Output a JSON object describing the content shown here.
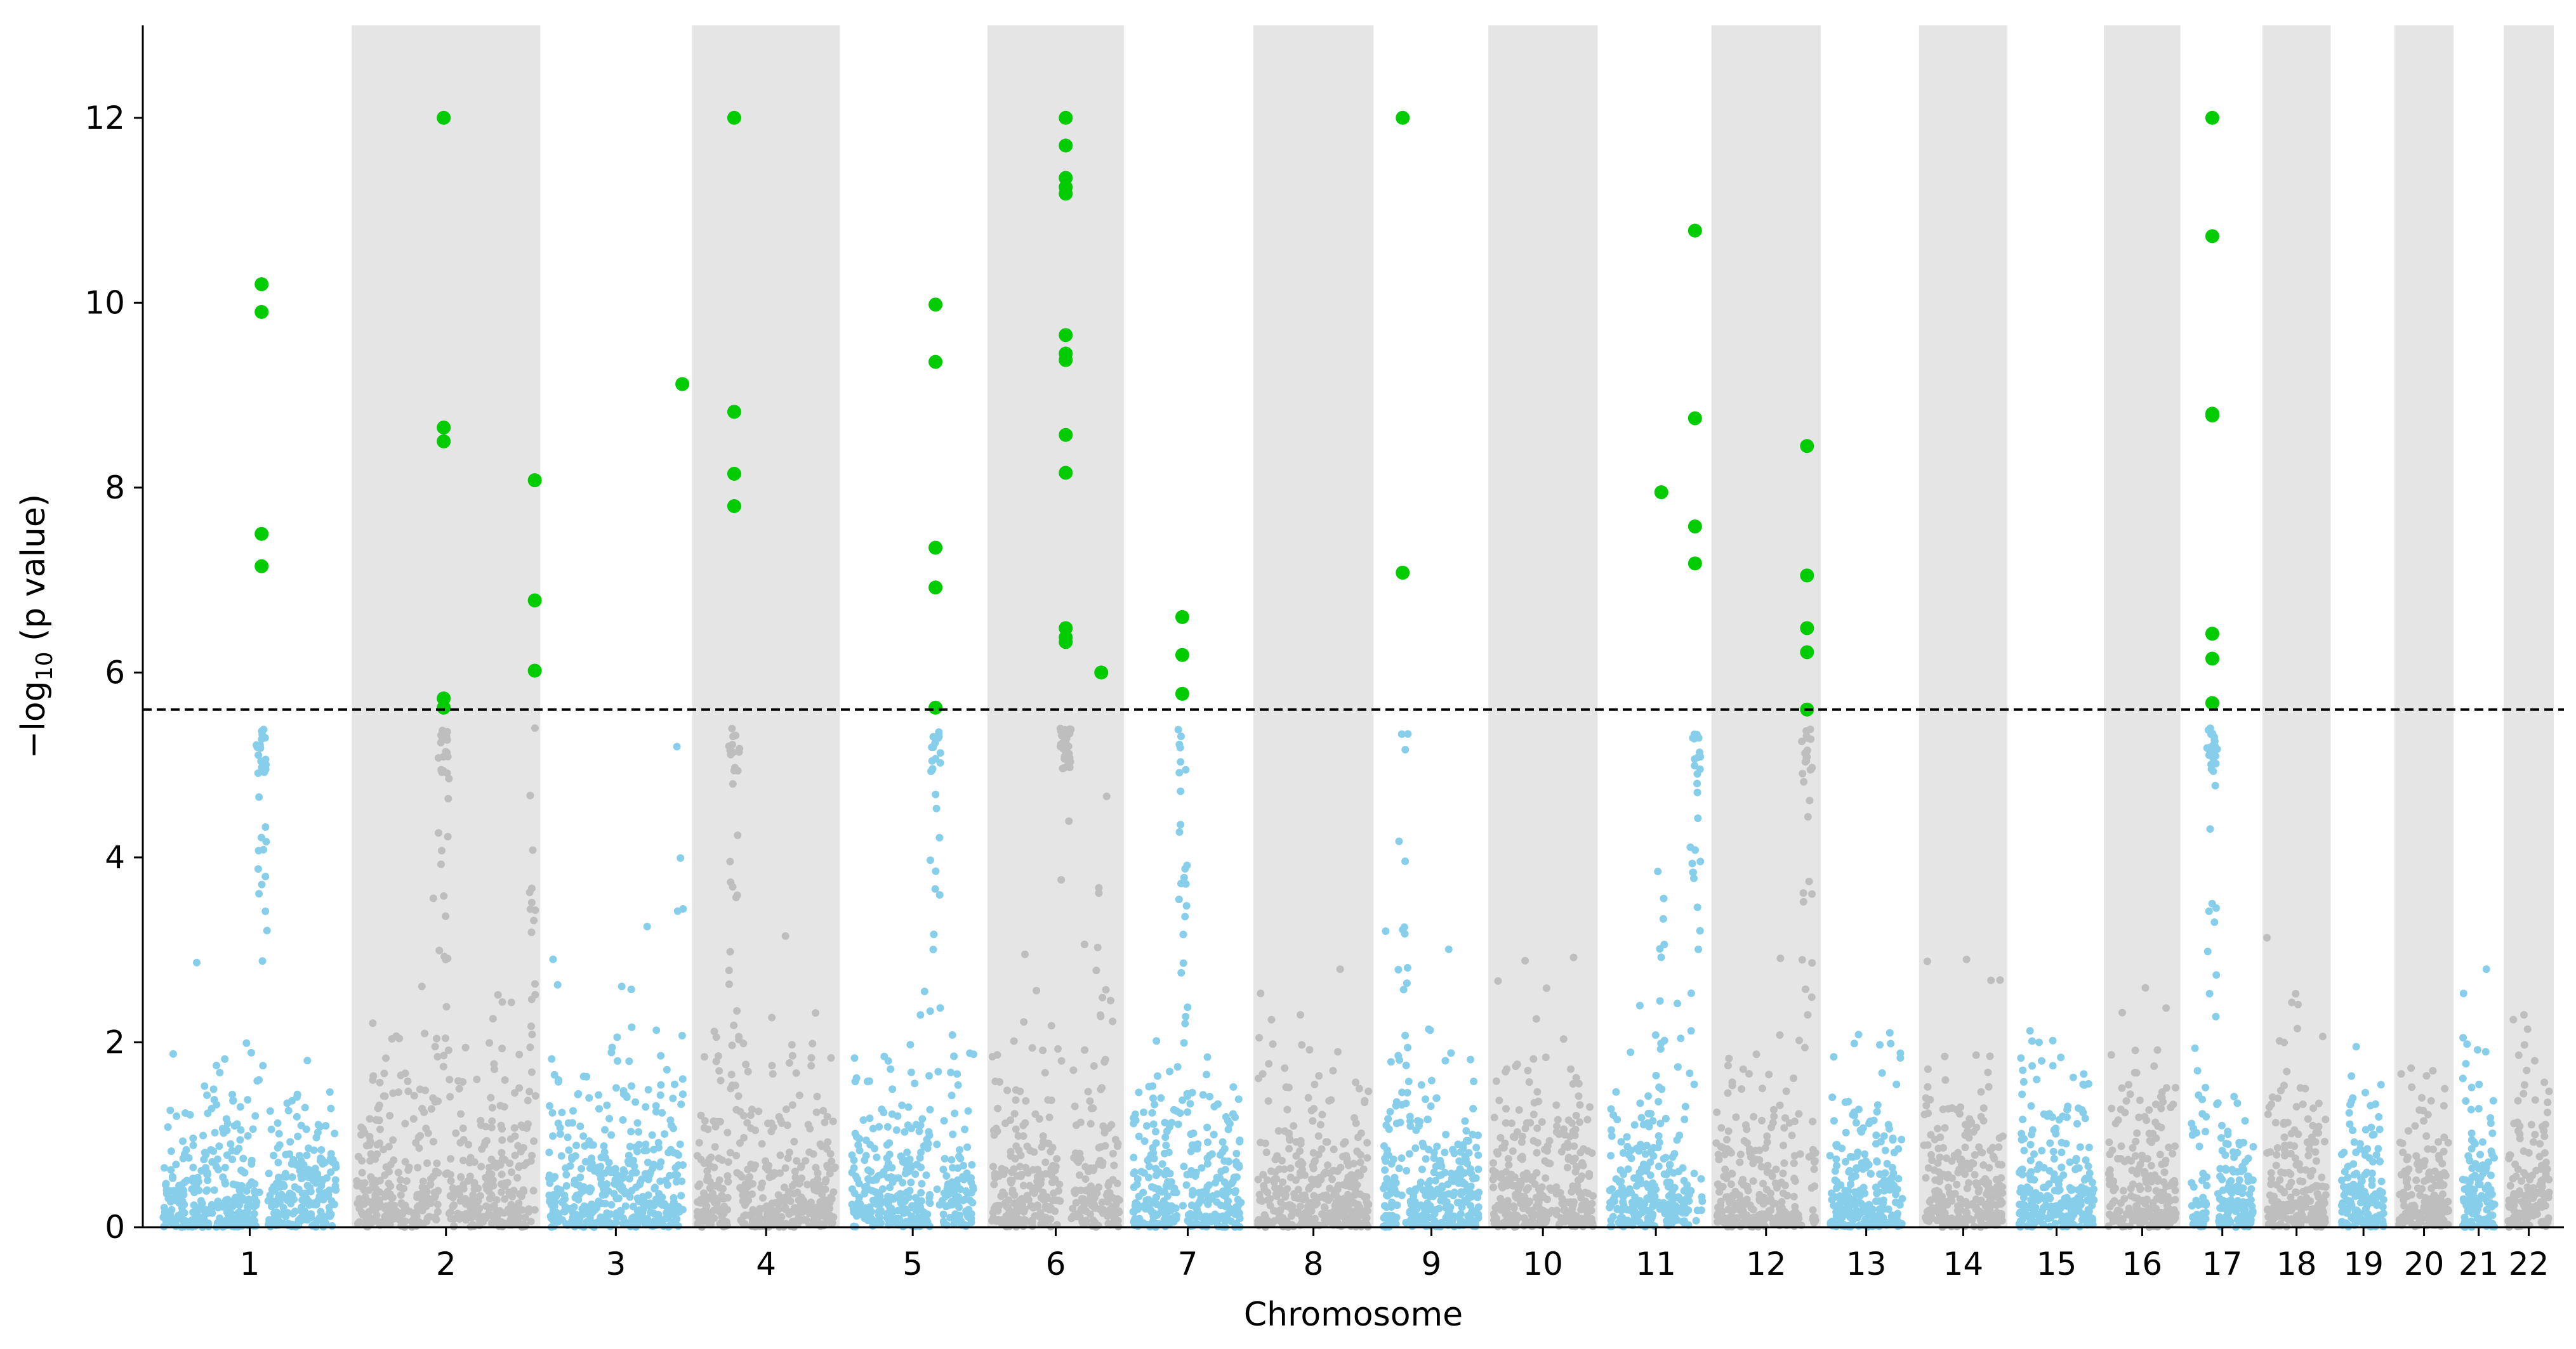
{
  "chart_data": {
    "type": "scatter",
    "subtype": "manhattan",
    "title": "",
    "xlabel": "Chromosome",
    "ylabel": "−log10 (p value)",
    "ylabel_parts": {
      "prefix": "−log",
      "subscript": "10",
      "suffix": " (p value)"
    },
    "ylim": [
      0,
      13
    ],
    "yticks": [
      0,
      2,
      4,
      6,
      8,
      10,
      12
    ],
    "significance_threshold": 5.6,
    "colors": {
      "odd_chromosome": "#87CEEB",
      "even_chromosome": "#BEBEBE",
      "significant": "#00CC00",
      "band": "#E5E5E5",
      "threshold_line": "#000000"
    },
    "chromosomes": [
      {
        "label": "1",
        "start": 0.0,
        "end": 2.0
      },
      {
        "label": "2",
        "start": 2.12,
        "end": 4.19
      },
      {
        "label": "3",
        "start": 4.23,
        "end": 5.81
      },
      {
        "label": "4",
        "start": 5.86,
        "end": 7.48
      },
      {
        "label": "5",
        "start": 7.56,
        "end": 9.0
      },
      {
        "label": "6",
        "start": 9.1,
        "end": 10.6
      },
      {
        "label": "7",
        "start": 10.65,
        "end": 11.95
      },
      {
        "label": "8",
        "start": 12.02,
        "end": 13.34
      },
      {
        "label": "9",
        "start": 13.4,
        "end": 14.55
      },
      {
        "label": "10",
        "start": 14.6,
        "end": 15.8
      },
      {
        "label": "11",
        "start": 15.88,
        "end": 17.0
      },
      {
        "label": "12",
        "start": 17.05,
        "end": 18.25
      },
      {
        "label": "13",
        "start": 18.3,
        "end": 19.2
      },
      {
        "label": "14",
        "start": 19.33,
        "end": 20.3
      },
      {
        "label": "15",
        "start": 20.38,
        "end": 21.3
      },
      {
        "label": "16",
        "start": 21.36,
        "end": 22.2
      },
      {
        "label": "17",
        "start": 22.27,
        "end": 23.05
      },
      {
        "label": "18",
        "start": 23.1,
        "end": 23.85
      },
      {
        "label": "19",
        "start": 23.92,
        "end": 24.5
      },
      {
        "label": "20",
        "start": 24.55,
        "end": 25.2
      },
      {
        "label": "21",
        "start": 25.25,
        "end": 25.7
      },
      {
        "label": "22",
        "start": 25.75,
        "end": 26.3
      }
    ],
    "significant_points": [
      {
        "x": 1.13,
        "y": 10.2
      },
      {
        "x": 1.13,
        "y": 9.9
      },
      {
        "x": 1.13,
        "y": 7.5
      },
      {
        "x": 1.13,
        "y": 7.15
      },
      {
        "x": 3.13,
        "y": 12.0
      },
      {
        "x": 3.13,
        "y": 8.65
      },
      {
        "x": 3.13,
        "y": 8.5
      },
      {
        "x": 3.13,
        "y": 5.72
      },
      {
        "x": 3.13,
        "y": 5.62
      },
      {
        "x": 4.13,
        "y": 8.08
      },
      {
        "x": 4.13,
        "y": 6.78
      },
      {
        "x": 4.13,
        "y": 6.02
      },
      {
        "x": 5.75,
        "y": 9.12
      },
      {
        "x": 6.32,
        "y": 12.0
      },
      {
        "x": 6.32,
        "y": 8.82
      },
      {
        "x": 6.32,
        "y": 8.15
      },
      {
        "x": 6.32,
        "y": 7.8
      },
      {
        "x": 8.53,
        "y": 9.98
      },
      {
        "x": 8.53,
        "y": 9.36
      },
      {
        "x": 8.53,
        "y": 7.35
      },
      {
        "x": 8.53,
        "y": 6.92
      },
      {
        "x": 8.53,
        "y": 5.62
      },
      {
        "x": 9.96,
        "y": 12.0
      },
      {
        "x": 9.96,
        "y": 11.7
      },
      {
        "x": 9.96,
        "y": 11.35
      },
      {
        "x": 9.96,
        "y": 11.25
      },
      {
        "x": 9.96,
        "y": 11.18
      },
      {
        "x": 9.96,
        "y": 9.65
      },
      {
        "x": 9.96,
        "y": 9.45
      },
      {
        "x": 9.96,
        "y": 9.38
      },
      {
        "x": 9.96,
        "y": 8.57
      },
      {
        "x": 9.96,
        "y": 8.16
      },
      {
        "x": 9.96,
        "y": 6.48
      },
      {
        "x": 9.96,
        "y": 6.38
      },
      {
        "x": 9.96,
        "y": 6.33
      },
      {
        "x": 10.35,
        "y": 6.0
      },
      {
        "x": 11.24,
        "y": 6.6
      },
      {
        "x": 11.24,
        "y": 6.19
      },
      {
        "x": 11.24,
        "y": 5.77
      },
      {
        "x": 13.66,
        "y": 12.0
      },
      {
        "x": 13.66,
        "y": 7.08
      },
      {
        "x": 16.5,
        "y": 7.95
      },
      {
        "x": 16.87,
        "y": 10.78
      },
      {
        "x": 16.87,
        "y": 8.75
      },
      {
        "x": 16.87,
        "y": 7.58
      },
      {
        "x": 16.87,
        "y": 7.18
      },
      {
        "x": 18.1,
        "y": 8.45
      },
      {
        "x": 18.1,
        "y": 7.05
      },
      {
        "x": 18.1,
        "y": 6.48
      },
      {
        "x": 18.1,
        "y": 6.22
      },
      {
        "x": 18.1,
        "y": 5.6
      },
      {
        "x": 22.55,
        "y": 12.0
      },
      {
        "x": 22.55,
        "y": 10.72
      },
      {
        "x": 22.55,
        "y": 8.8
      },
      {
        "x": 22.55,
        "y": 8.78
      },
      {
        "x": 22.55,
        "y": 6.42
      },
      {
        "x": 22.55,
        "y": 6.15
      },
      {
        "x": 22.55,
        "y": 5.67
      }
    ],
    "background_points_note": "Thousands of non-significant SNP points per chromosome, mostly between 0 and 2, with peaks near significant loci; rendered procedurally."
  }
}
